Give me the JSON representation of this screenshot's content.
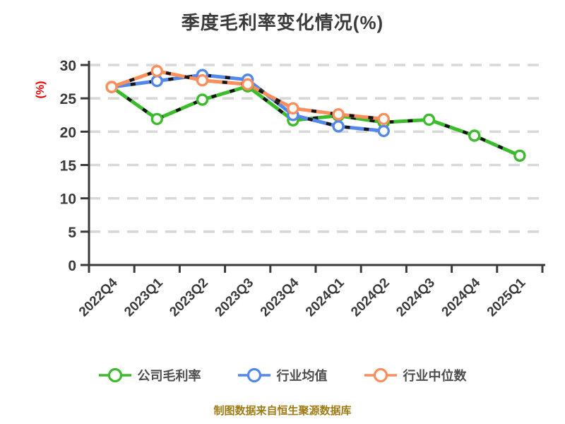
{
  "title": "季度毛利率变化情况(%)",
  "footer": "制图数据来自恒生聚源数据库",
  "colors": {
    "company": "#3cbb2c",
    "industry_avg": "#5488e8",
    "industry_median": "#fa8e5c",
    "title_text": "#3b3b3b",
    "axis_text": "#3a3a3a",
    "y_axis_label": "#e60000",
    "gridline": "#d8d8d8",
    "line_dash_overlay": "#151515",
    "footer_text": "#9e7b15"
  },
  "chart_data": {
    "type": "line",
    "title": "季度毛利率变化情况(%)",
    "xlabel": "",
    "ylabel": "(%)",
    "ylim": [
      0,
      30
    ],
    "yticks": [
      0,
      5,
      10,
      15,
      20,
      25,
      30
    ],
    "grid": true,
    "grid_style": "dashed",
    "legend_position": "bottom",
    "marker": "circle-white-fill",
    "categories": [
      "2022Q4",
      "2023Q1",
      "2023Q2",
      "2023Q3",
      "2023Q4",
      "2024Q1",
      "2024Q2",
      "2024Q3",
      "2024Q4",
      "2025Q1"
    ],
    "series": [
      {
        "name": "公司毛利率",
        "color": "#3cbb2c",
        "values": [
          26.7,
          21.9,
          24.8,
          26.8,
          21.7,
          22.4,
          21.4,
          21.8,
          19.4,
          16.4
        ]
      },
      {
        "name": "行业均值",
        "color": "#5488e8",
        "values": [
          26.7,
          27.6,
          28.5,
          27.8,
          22.5,
          20.8,
          20.1,
          null,
          null,
          null
        ]
      },
      {
        "name": "行业中位数",
        "color": "#fa8e5c",
        "values": [
          26.7,
          29.1,
          27.7,
          27.1,
          23.5,
          22.6,
          21.9,
          null,
          null,
          null
        ]
      }
    ]
  }
}
